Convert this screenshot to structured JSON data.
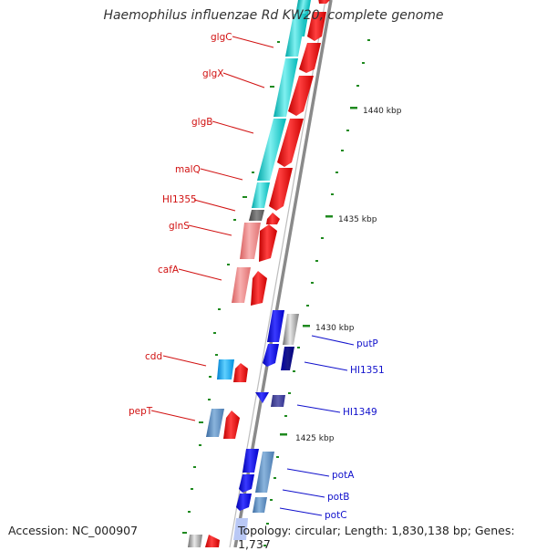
{
  "title": "Haemophilus influenzae Rd KW20, complete genome",
  "accession": "Accession: NC_000907",
  "topology": "Topology: circular; Length: 1,830,138 bp; Genes: 1,737",
  "colors": {
    "backbone": "#8a8a8a",
    "tick": "#1f8a1f",
    "left_label": "#d11111",
    "right_label": "#1111cc"
  },
  "kbp_markers": [
    "1440 kbp",
    "1435 kbp",
    "1430 kbp",
    "1425 kbp"
  ],
  "left_genes": [
    "glgC",
    "glgX",
    "glgB",
    "malQ",
    "HI1355",
    "glnS",
    "cafA",
    "cdd",
    "pepT"
  ],
  "right_genes": [
    "putP",
    "HI1351",
    "HI1349",
    "potA",
    "potB",
    "potC"
  ]
}
